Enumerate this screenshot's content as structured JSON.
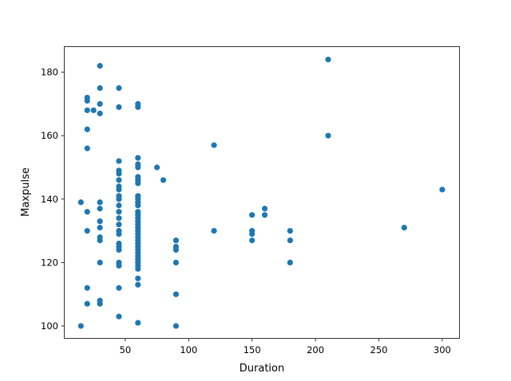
{
  "chart_data": {
    "type": "scatter",
    "title": "",
    "xlabel": "Duration",
    "ylabel": "Maxpulse",
    "xticks": [
      50,
      100,
      150,
      200,
      250,
      300
    ],
    "yticks": [
      100,
      120,
      140,
      160,
      180
    ],
    "grid": false,
    "color": "#1f77b4",
    "points": {
      "15": [
        139,
        100
      ],
      "20": [
        172,
        171,
        168,
        162,
        156,
        136,
        130,
        112,
        107
      ],
      "25": [
        168
      ],
      "30": [
        182,
        175,
        170,
        167,
        139,
        137,
        133,
        131,
        128,
        127,
        120,
        108,
        107
      ],
      "45": [
        175,
        169,
        152,
        149,
        148,
        146,
        144,
        143,
        141,
        140,
        138,
        136,
        134,
        132,
        130,
        129,
        126,
        125,
        124,
        120,
        119,
        112,
        103
      ],
      "60": [
        170,
        169,
        153,
        151,
        150,
        147,
        146,
        145,
        141,
        140,
        139,
        138,
        136,
        135,
        134,
        133,
        132,
        131,
        130,
        129,
        128,
        127,
        126,
        125,
        124,
        123,
        122,
        121,
        120,
        119,
        118,
        115,
        113,
        101
      ],
      "75": [
        150
      ],
      "80": [
        146
      ],
      "90": [
        127,
        125,
        124,
        120,
        110,
        100
      ],
      "120": [
        157,
        130
      ],
      "150": [
        135,
        130,
        129,
        127
      ],
      "160": [
        137,
        135
      ],
      "180": [
        130,
        127,
        120
      ],
      "210": [
        184,
        160
      ],
      "270": [
        131
      ],
      "300": [
        143
      ]
    }
  }
}
